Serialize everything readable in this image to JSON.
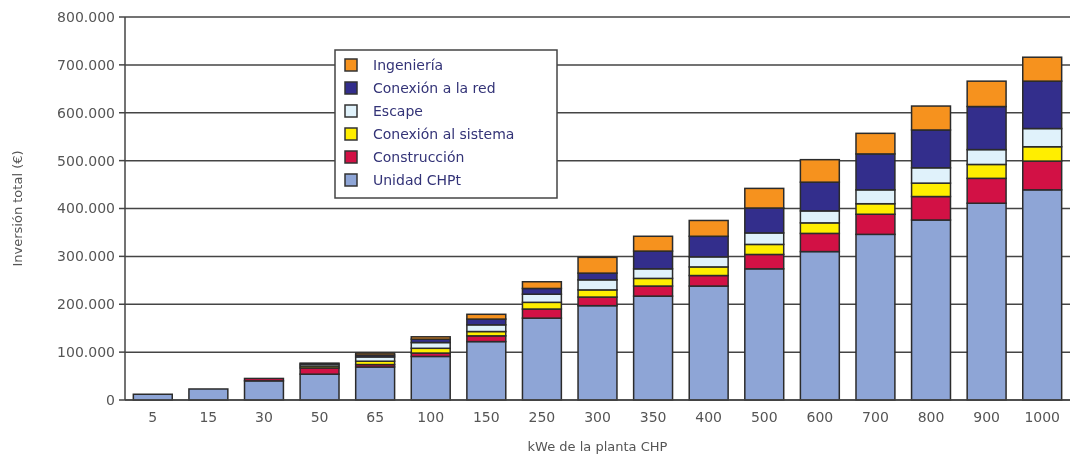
{
  "chart_data": {
    "type": "bar",
    "stacked": true,
    "xlabel": "kWe de la planta CHP",
    "ylabel": "Inversión total (€)",
    "categories": [
      "5",
      "15",
      "30",
      "50",
      "65",
      "100",
      "150",
      "250",
      "300",
      "350",
      "400",
      "500",
      "600",
      "700",
      "800",
      "900",
      "1000"
    ],
    "series": [
      {
        "name": "Unidad CHPt",
        "color": "#8ea5d6",
        "values": [
          12000,
          23000,
          40000,
          54000,
          69000,
          91000,
          122000,
          171000,
          197000,
          217000,
          238000,
          274000,
          310000,
          346000,
          376000,
          411000,
          439000
        ]
      },
      {
        "name": "Construcción",
        "color": "#d21145",
        "values": [
          0,
          0,
          5000,
          13000,
          5000,
          7000,
          12000,
          19000,
          18000,
          21000,
          22000,
          30000,
          38000,
          42000,
          49000,
          52000,
          60000
        ]
      },
      {
        "name": "Conexión al sistema",
        "color": "#ffee00",
        "values": [
          0,
          0,
          0,
          4000,
          7000,
          10000,
          9000,
          14000,
          15000,
          16000,
          18000,
          21000,
          22000,
          22000,
          28000,
          29000,
          30000
        ]
      },
      {
        "name": "Escape",
        "color": "#e0f2fb",
        "values": [
          0,
          0,
          0,
          4000,
          9000,
          12000,
          14000,
          17000,
          21000,
          20000,
          21000,
          24000,
          25000,
          29000,
          32000,
          31000,
          38000
        ]
      },
      {
        "name": "Conexión a la red",
        "color": "#332e8c",
        "values": [
          0,
          0,
          0,
          2000,
          4000,
          7000,
          12000,
          12000,
          14000,
          37000,
          43000,
          52000,
          60000,
          75000,
          79000,
          90000,
          99000
        ]
      },
      {
        "name": "Ingeniería",
        "color": "#f6921e",
        "values": [
          0,
          0,
          0,
          0,
          4000,
          5000,
          10000,
          14000,
          33000,
          31000,
          33000,
          41000,
          47000,
          43000,
          50000,
          53000,
          50000
        ]
      }
    ],
    "ylim": [
      0,
      800000
    ],
    "yticks": [
      0,
      {
        "value": 100000,
        "label": "100.000"
      },
      {
        "value": 200000,
        "label": "200.000"
      },
      {
        "value": 300000,
        "label": "300.000"
      },
      {
        "value": 400000,
        "label": "400.000"
      },
      {
        "value": 500000,
        "label": "500.000"
      },
      {
        "value": 600000,
        "label": "600.000"
      },
      {
        "value": 700000,
        "label": "700.000"
      },
      {
        "value": 800000,
        "label": "800.000"
      }
    ],
    "grid": "y",
    "legend": "top left"
  }
}
